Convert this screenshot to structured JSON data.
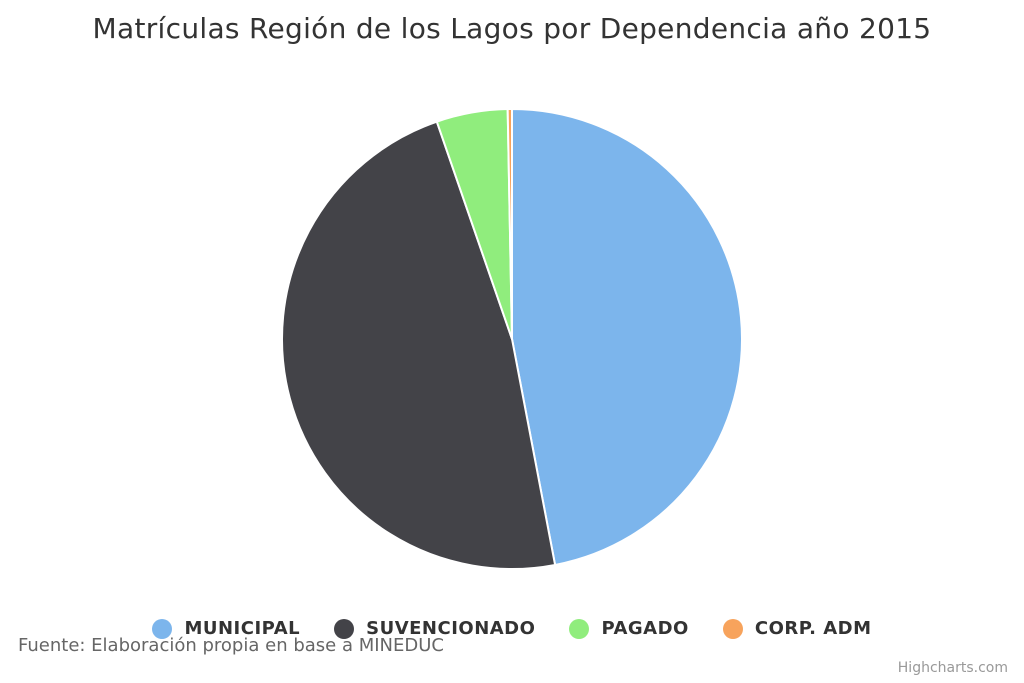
{
  "chart_data": {
    "type": "pie",
    "title": "Matrículas Región de los Lagos por Dependencia año 2015",
    "categories": [
      "MUNICIPAL",
      "SUVENCIONADO",
      "PAGADO",
      "CORP. ADM"
    ],
    "values": [
      47.0,
      47.7,
      5.0,
      0.3
    ],
    "colors": [
      "#7cb5ec",
      "#434348",
      "#90ed7d",
      "#f7a35c"
    ],
    "legend_placement": "bottom-center",
    "start_angle_deg": 0,
    "direction": "clockwise"
  },
  "source_note": "Fuente: Elaboración propia en base a MINEDUC",
  "credits": "Highcharts.com"
}
